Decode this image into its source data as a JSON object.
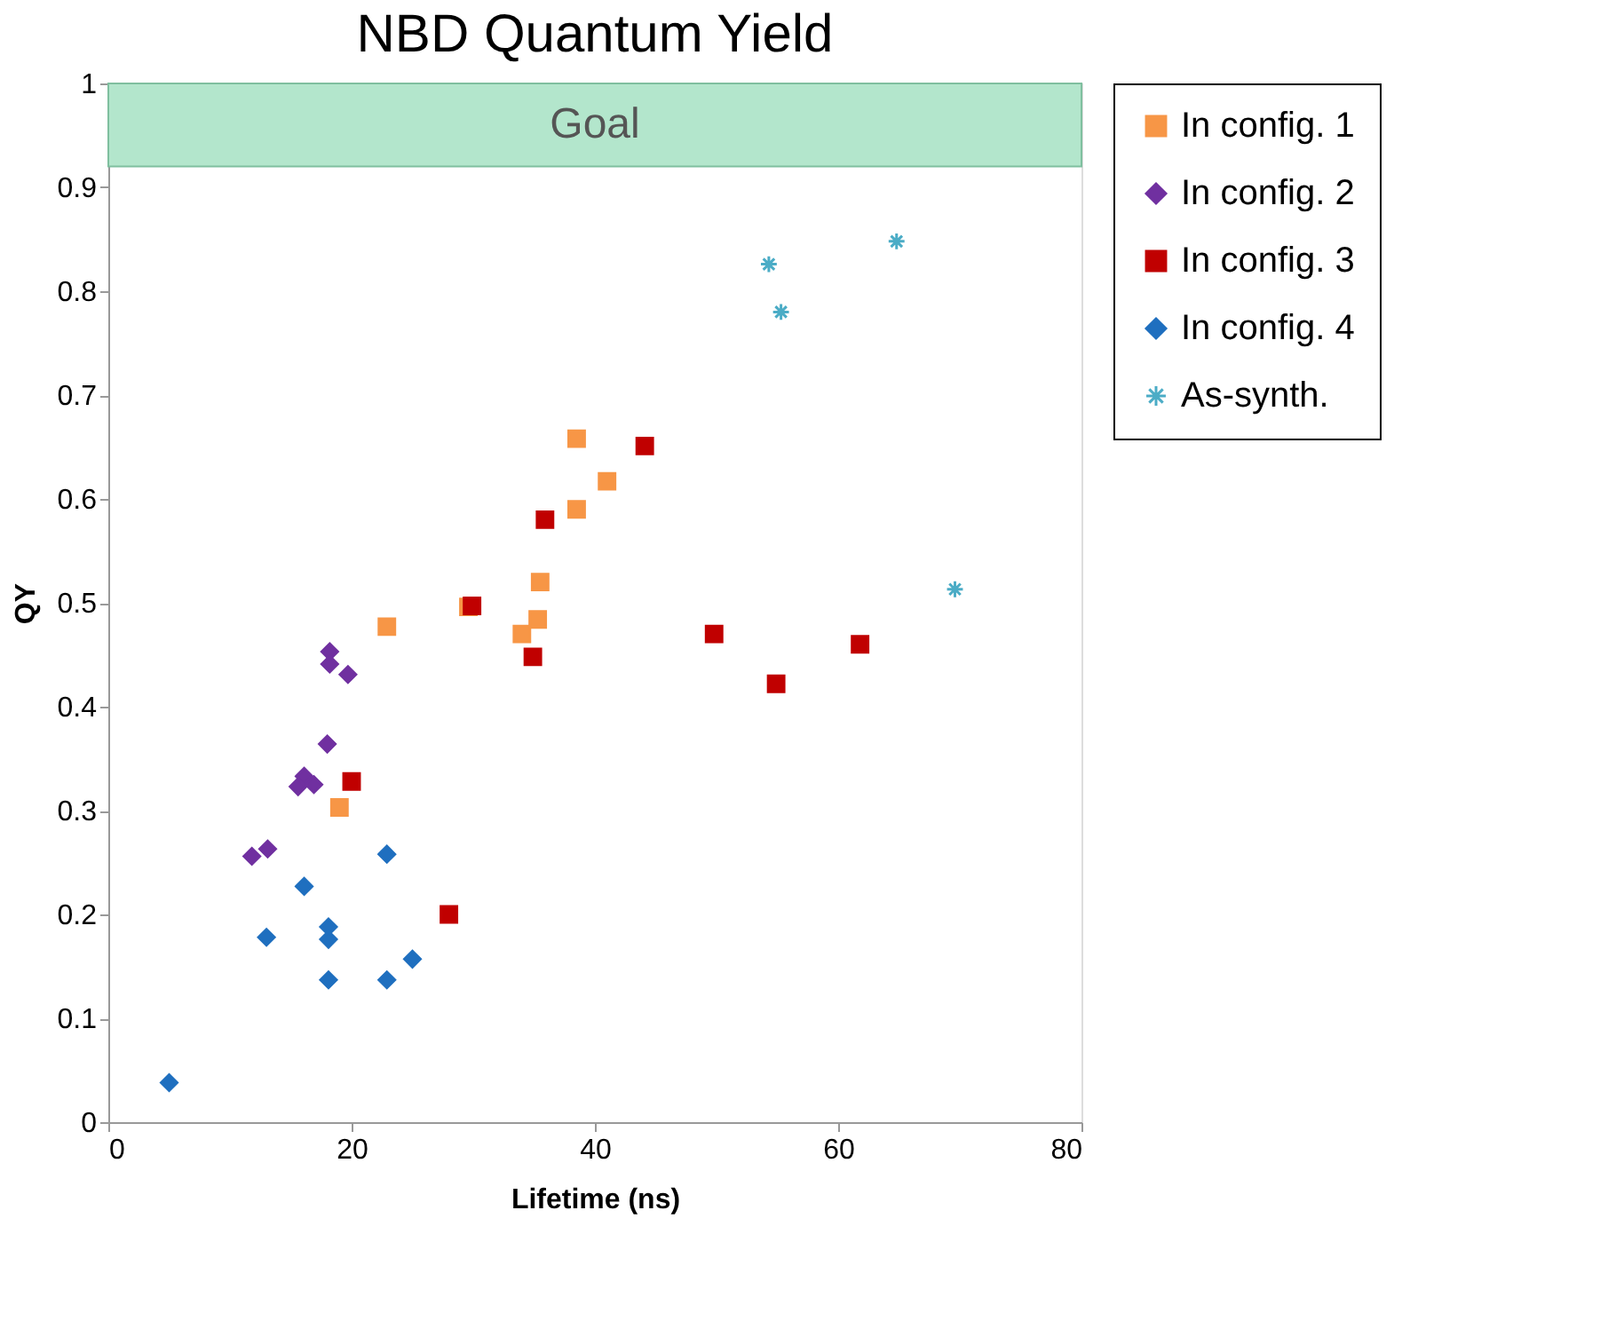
{
  "chart_data": {
    "type": "scatter",
    "title": "NBD Quantum Yield",
    "xlabel": "Lifetime (ns)",
    "ylabel": "QY",
    "xlim": [
      0,
      80
    ],
    "xticks": [
      0,
      20,
      40,
      60,
      80
    ],
    "ylim": [
      0,
      1
    ],
    "yticks": [
      0,
      0.1,
      0.2,
      0.3,
      0.4,
      0.5,
      0.6,
      0.7,
      0.8,
      0.9,
      1
    ],
    "grid": false,
    "legend": "right",
    "bands": [
      {
        "axis": "y",
        "from": 0.92,
        "to": 1,
        "label": "Goal",
        "color": "#b3e6cc"
      }
    ],
    "series": [
      {
        "name": "In config. 1",
        "color": "#f79646",
        "marker": "square",
        "x": [
          22.9,
          19.0,
          29.6,
          34.0,
          35.3,
          35.5,
          38.5,
          38.5,
          41.0
        ],
        "values": [
          0.477,
          0.303,
          0.496,
          0.47,
          0.484,
          0.52,
          0.59,
          0.658,
          0.617
        ]
      },
      {
        "name": "In config. 2",
        "color": "#7030a0",
        "marker": "diamond",
        "x": [
          18.2,
          18.2,
          19.7,
          18.0,
          16.1,
          15.6,
          16.9,
          11.8,
          13.1
        ],
        "values": [
          0.453,
          0.441,
          0.431,
          0.364,
          0.333,
          0.323,
          0.325,
          0.256,
          0.263
        ]
      },
      {
        "name": "In config. 3",
        "color": "#c00000",
        "marker": "square",
        "x": [
          29.9,
          34.9,
          35.9,
          44.1,
          20.0,
          28.0,
          49.8,
          54.9,
          61.8
        ],
        "values": [
          0.497,
          0.448,
          0.58,
          0.651,
          0.328,
          0.2,
          0.47,
          0.422,
          0.46
        ]
      },
      {
        "name": "In config. 4",
        "color": "#1f6fbf",
        "marker": "diamond",
        "x": [
          22.9,
          16.1,
          13.0,
          18.1,
          18.1,
          25.0,
          18.1,
          22.9,
          5.0
        ],
        "values": [
          0.258,
          0.227,
          0.178,
          0.188,
          0.176,
          0.157,
          0.137,
          0.137,
          0.038
        ]
      },
      {
        "name": "As-synth.",
        "color": "#4bacc6",
        "marker": "cross",
        "x": [
          64.8,
          54.3,
          55.3,
          69.6
        ],
        "values": [
          0.848,
          0.826,
          0.78,
          0.513
        ]
      }
    ]
  }
}
